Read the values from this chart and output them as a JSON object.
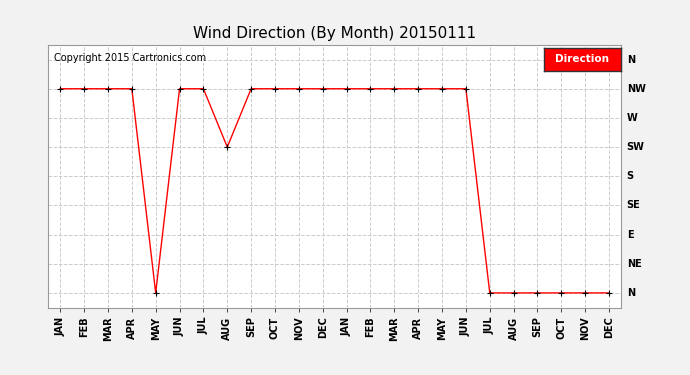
{
  "title": "Wind Direction (By Month) 20150111",
  "copyright_text": "Copyright 2015 Cartronics.com",
  "legend_label": "Direction",
  "legend_bg": "#ff0000",
  "legend_text_color": "#ffffff",
  "x_labels": [
    "JAN",
    "FEB",
    "MAR",
    "APR",
    "MAY",
    "JUN",
    "JUL",
    "AUG",
    "SEP",
    "OCT",
    "NOV",
    "DEC",
    "JAN",
    "FEB",
    "MAR",
    "APR",
    "MAY",
    "JUN",
    "JUL",
    "AUG",
    "SEP",
    "OCT",
    "NOV",
    "DEC"
  ],
  "y_labels": [
    "N",
    "NW",
    "W",
    "SW",
    "S",
    "SE",
    "E",
    "NE",
    "N"
  ],
  "y_values": [
    8,
    7,
    6,
    5,
    4,
    3,
    2,
    1,
    0
  ],
  "direction_values": [
    7,
    7,
    7,
    7,
    0,
    7,
    7,
    5,
    7,
    7,
    7,
    7,
    7,
    7,
    7,
    7,
    7,
    7,
    0,
    0,
    0,
    0,
    0,
    0
  ],
  "line_color": "#ff0000",
  "marker": "+",
  "marker_size": 4,
  "marker_color": "black",
  "grid_color": "#cccccc",
  "grid_style": "--",
  "bg_color": "#f2f2f2",
  "plot_bg_color": "#ffffff",
  "title_fontsize": 11,
  "axis_fontsize": 7,
  "copyright_fontsize": 7,
  "figsize": [
    6.9,
    3.75
  ],
  "dpi": 100
}
